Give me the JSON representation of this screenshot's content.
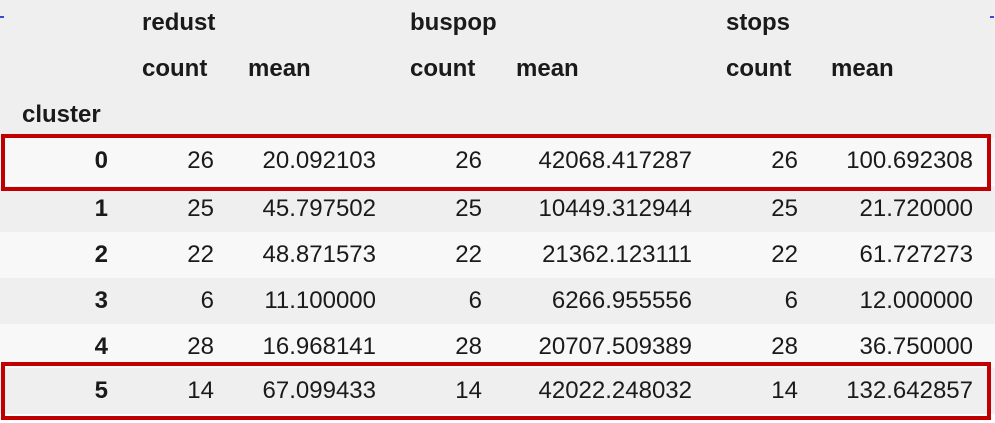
{
  "header": {
    "top_groups": [
      "redust",
      "buspop",
      "stops"
    ],
    "sub_columns": [
      "count",
      "mean",
      "count",
      "mean",
      "count",
      "mean"
    ],
    "index_name": "cluster"
  },
  "rows": [
    [
      "0",
      "26",
      "20.092103",
      "26",
      "42068.417287",
      "26",
      "100.692308"
    ],
    [
      "1",
      "25",
      "45.797502",
      "25",
      "10449.312944",
      "25",
      "21.720000"
    ],
    [
      "2",
      "22",
      "48.871573",
      "22",
      "21362.123111",
      "22",
      "61.727273"
    ],
    [
      "3",
      "6",
      "11.100000",
      "6",
      "6266.955556",
      "6",
      "12.000000"
    ],
    [
      "4",
      "28",
      "16.968141",
      "28",
      "20707.509389",
      "28",
      "36.750000"
    ],
    [
      "5",
      "14",
      "67.099433",
      "14",
      "42022.248032",
      "14",
      "132.642857"
    ]
  ],
  "highlighted_clusters": [
    "0",
    "5"
  ],
  "colors": {
    "highlight_border": "#c00000",
    "row_shade": "#efefef",
    "row_plain": "#f8f8f8",
    "text": "#1a1a1a"
  }
}
